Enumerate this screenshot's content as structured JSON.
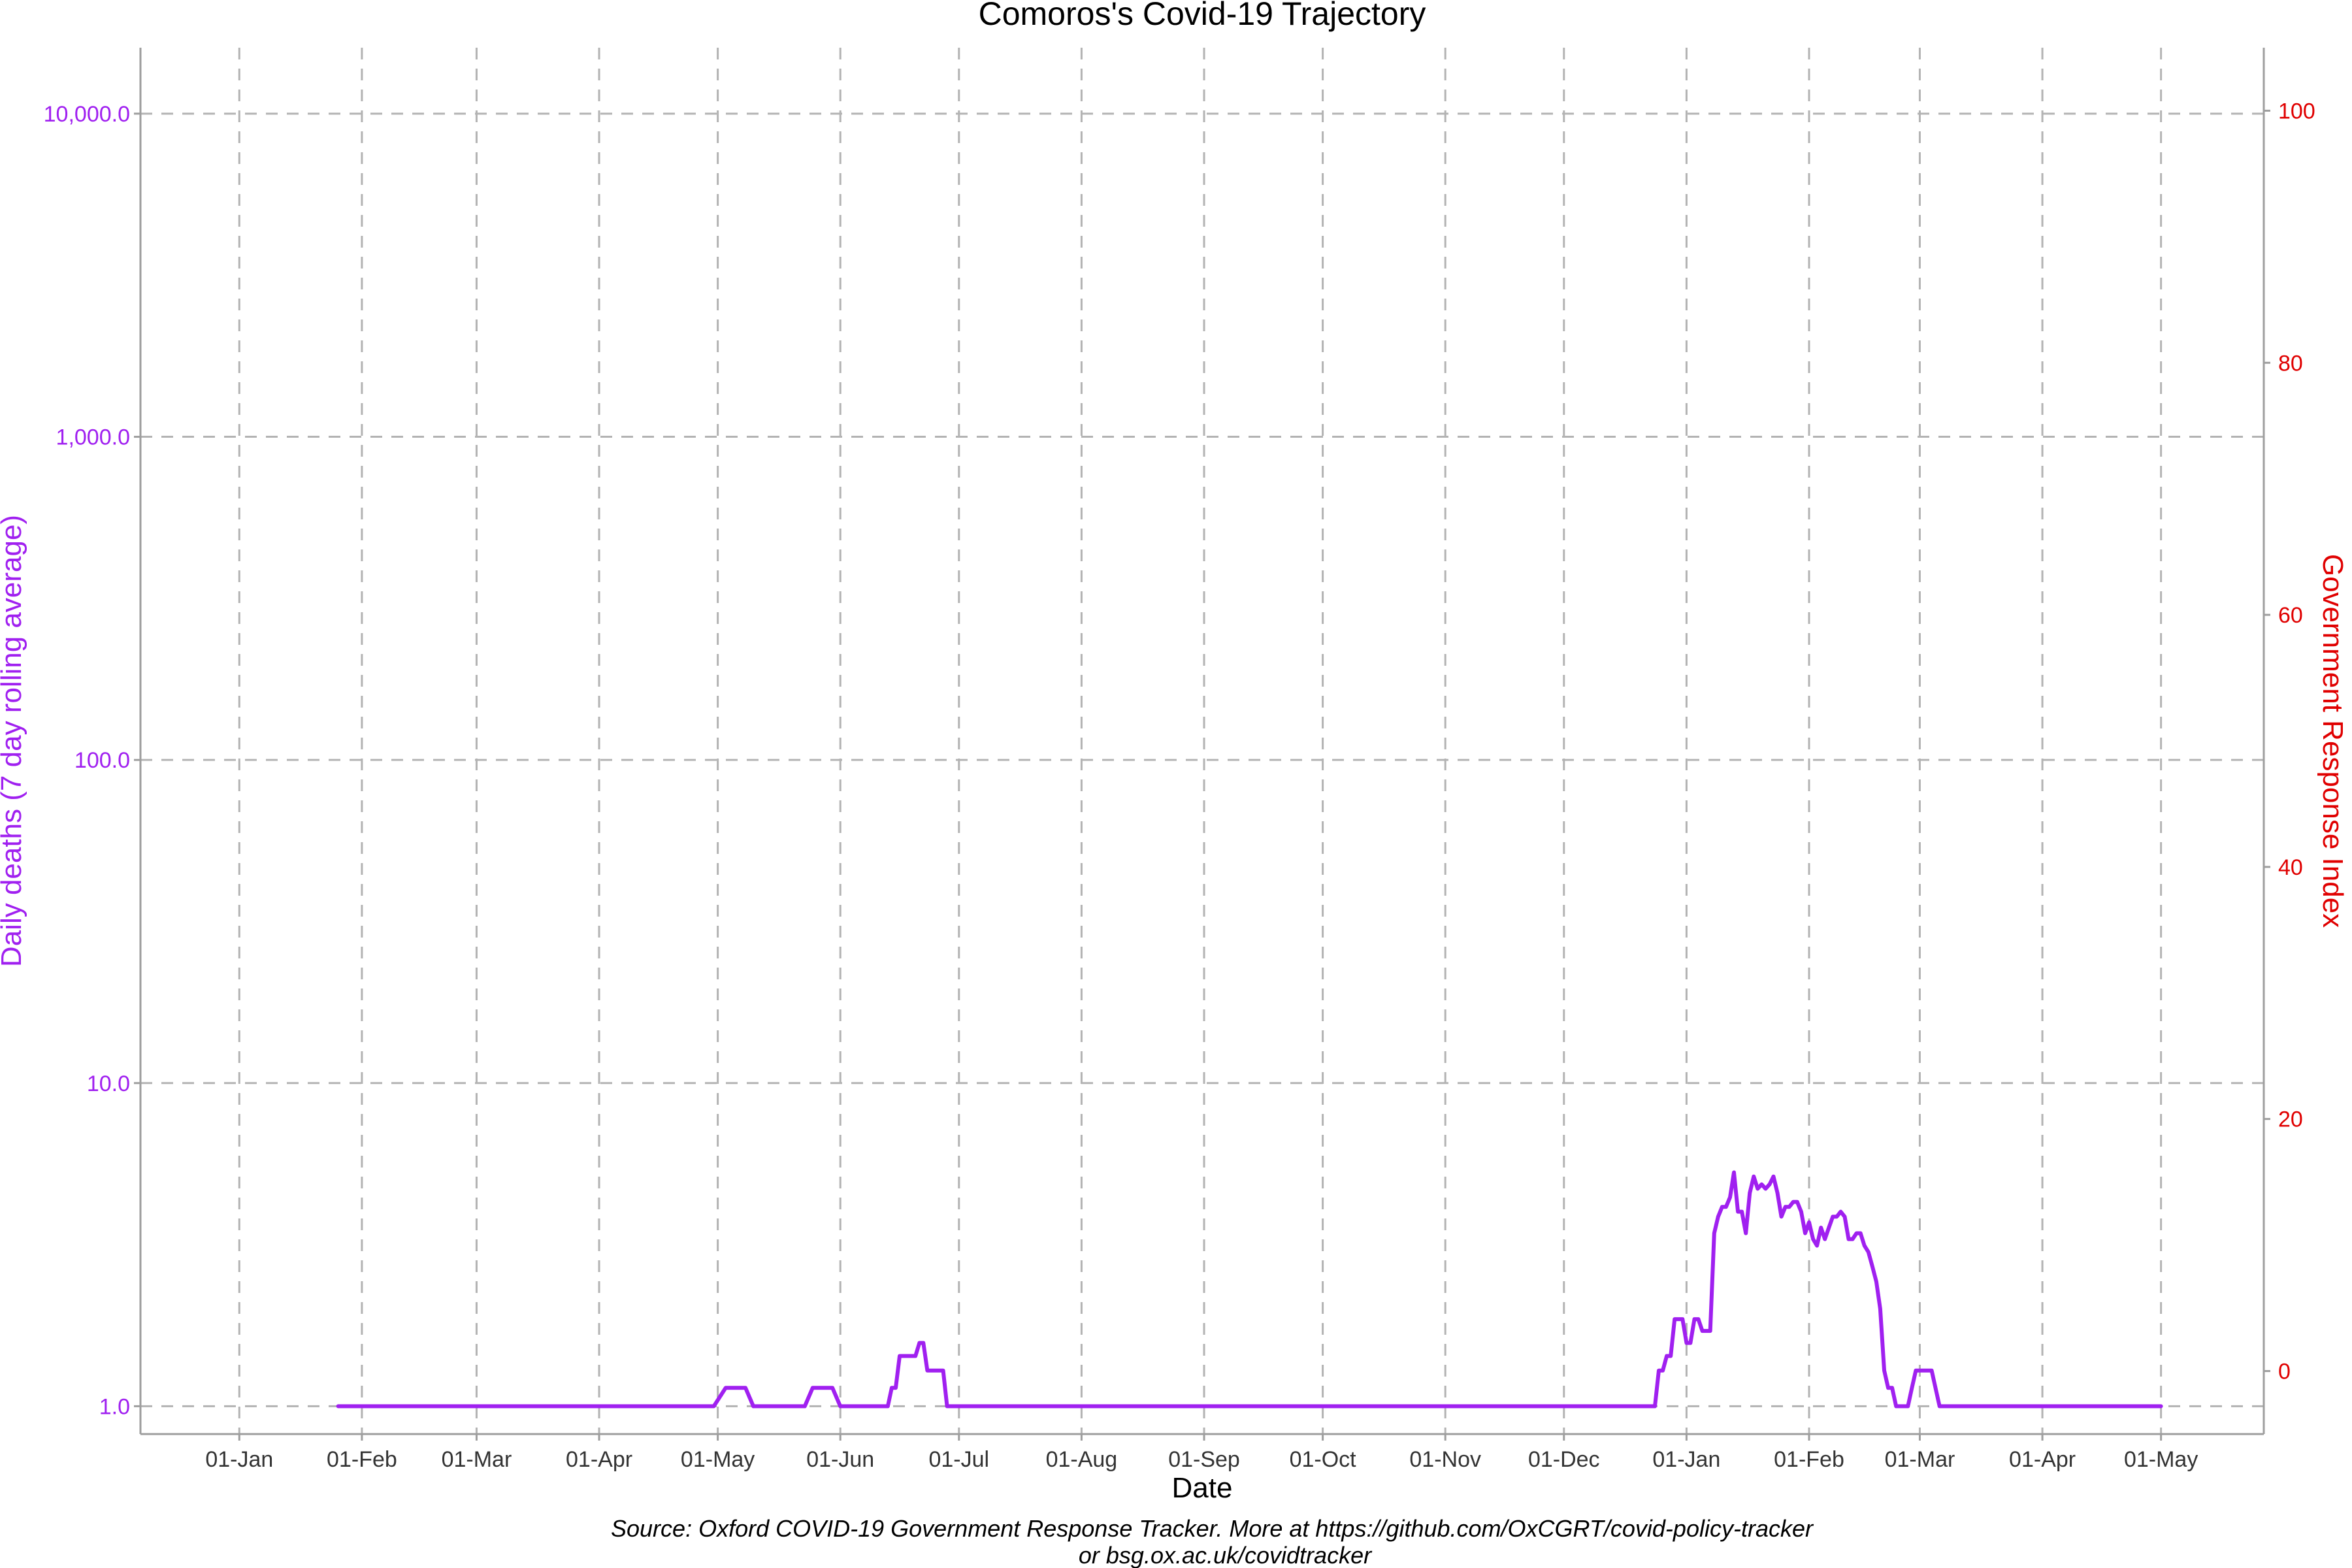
{
  "chart_data": {
    "type": "line",
    "title": "Comoros's Covid-19 Trajectory",
    "xlabel": "Date",
    "ylabel_left": "Daily deaths (7 day rolling average)",
    "ylabel_right": "Government Response Index",
    "caption_line1": "Source: Oxford COVID-19 Government Response Tracker. More at https://github.com/OxCGRT/covid-policy-tracker",
    "caption_line2": "or bsg.ox.ac.uk/covidtracker",
    "x_ticks": [
      "01-Jan",
      "01-Feb",
      "01-Mar",
      "01-Apr",
      "01-May",
      "01-Jun",
      "01-Jul",
      "01-Aug",
      "01-Sep",
      "01-Oct",
      "01-Nov",
      "01-Dec",
      "01-Jan",
      "01-Feb",
      "01-Mar",
      "01-Apr",
      "01-May"
    ],
    "x_tick_dates": [
      "2020-01-01",
      "2020-02-01",
      "2020-03-01",
      "2020-04-01",
      "2020-05-01",
      "2020-06-01",
      "2020-07-01",
      "2020-08-01",
      "2020-09-01",
      "2020-10-01",
      "2020-11-01",
      "2020-12-01",
      "2021-01-01",
      "2021-02-01",
      "2021-03-01",
      "2021-04-01",
      "2021-05-01"
    ],
    "x_range": [
      "2019-12-07",
      "2021-05-27"
    ],
    "y_left_scale": "log10",
    "y_left_ticks": [
      "1.0",
      "10.0",
      "100.0",
      "1,000.0",
      "10,000.0"
    ],
    "y_left_tick_values": [
      1,
      10,
      100,
      1000,
      10000
    ],
    "y_left_range": [
      0.82,
      16000
    ],
    "y_right_ticks": [
      "0",
      "20",
      "40",
      "60",
      "80",
      "100"
    ],
    "y_right_tick_values": [
      0,
      20,
      40,
      60,
      80,
      100
    ],
    "y_right_range": [
      -5,
      105
    ],
    "grid": true,
    "legend": "none",
    "colors": {
      "deaths": "#a020f0",
      "right_axis": "#e00000",
      "grid": "#b3b3b3"
    },
    "series": [
      {
        "name": "",
        "axis": "left",
        "points": [
          [
            "2020-01-26",
            1
          ],
          [
            "2020-04-30",
            1
          ],
          [
            "2020-05-03",
            1.14
          ],
          [
            "2020-05-08",
            1.14
          ],
          [
            "2020-05-10",
            1
          ],
          [
            "2020-05-23",
            1
          ],
          [
            "2020-05-25",
            1.14
          ],
          [
            "2020-05-30",
            1.14
          ],
          [
            "2020-06-01",
            1
          ],
          [
            "2020-06-13",
            1
          ],
          [
            "2020-06-14",
            1.14
          ],
          [
            "2020-06-15",
            1.14
          ],
          [
            "2020-06-16",
            1.43
          ],
          [
            "2020-06-20",
            1.43
          ],
          [
            "2020-06-21",
            1.57
          ],
          [
            "2020-06-22",
            1.57
          ],
          [
            "2020-06-23",
            1.29
          ],
          [
            "2020-06-27",
            1.29
          ],
          [
            "2020-06-28",
            1
          ],
          [
            "2020-12-24",
            1
          ],
          [
            "2020-12-25",
            1.29
          ],
          [
            "2020-12-26",
            1.29
          ],
          [
            "2020-12-27",
            1.43
          ],
          [
            "2020-12-28",
            1.43
          ],
          [
            "2020-12-29",
            1.86
          ],
          [
            "2020-12-31",
            1.86
          ],
          [
            "2021-01-01",
            1.57
          ],
          [
            "2021-01-02",
            1.57
          ],
          [
            "2021-01-03",
            1.86
          ],
          [
            "2021-01-04",
            1.86
          ],
          [
            "2021-01-05",
            1.71
          ],
          [
            "2021-01-07",
            1.71
          ],
          [
            "2021-01-08",
            3.43
          ],
          [
            "2021-01-09",
            3.86
          ],
          [
            "2021-01-10",
            4.14
          ],
          [
            "2021-01-11",
            4.14
          ],
          [
            "2021-01-12",
            4.43
          ],
          [
            "2021-01-13",
            5.29
          ],
          [
            "2021-01-14",
            4
          ],
          [
            "2021-01-15",
            4
          ],
          [
            "2021-01-16",
            3.43
          ],
          [
            "2021-01-17",
            4.57
          ],
          [
            "2021-01-18",
            5.14
          ],
          [
            "2021-01-19",
            4.71
          ],
          [
            "2021-01-20",
            4.86
          ],
          [
            "2021-01-21",
            4.71
          ],
          [
            "2021-01-22",
            4.86
          ],
          [
            "2021-01-23",
            5.14
          ],
          [
            "2021-01-24",
            4.57
          ],
          [
            "2021-01-25",
            3.86
          ],
          [
            "2021-01-26",
            4.14
          ],
          [
            "2021-01-27",
            4.14
          ],
          [
            "2021-01-28",
            4.29
          ],
          [
            "2021-01-29",
            4.29
          ],
          [
            "2021-01-30",
            4
          ],
          [
            "2021-01-31",
            3.43
          ],
          [
            "2021-02-01",
            3.71
          ],
          [
            "2021-02-02",
            3.29
          ],
          [
            "2021-02-03",
            3.14
          ],
          [
            "2021-02-04",
            3.57
          ],
          [
            "2021-02-05",
            3.29
          ],
          [
            "2021-02-06",
            3.57
          ],
          [
            "2021-02-07",
            3.86
          ],
          [
            "2021-02-08",
            3.86
          ],
          [
            "2021-02-09",
            4
          ],
          [
            "2021-02-10",
            3.86
          ],
          [
            "2021-02-11",
            3.29
          ],
          [
            "2021-02-12",
            3.29
          ],
          [
            "2021-02-13",
            3.43
          ],
          [
            "2021-02-14",
            3.43
          ],
          [
            "2021-02-15",
            3.14
          ],
          [
            "2021-02-16",
            3
          ],
          [
            "2021-02-17",
            2.71
          ],
          [
            "2021-02-18",
            2.43
          ],
          [
            "2021-02-19",
            2
          ],
          [
            "2021-02-20",
            1.29
          ],
          [
            "2021-02-21",
            1.14
          ],
          [
            "2021-02-22",
            1.14
          ],
          [
            "2021-02-23",
            1
          ],
          [
            "2021-02-26",
            1
          ],
          [
            "2021-02-27",
            1.14
          ],
          [
            "2021-02-28",
            1.29
          ],
          [
            "2021-03-04",
            1.29
          ],
          [
            "2021-03-06",
            1
          ],
          [
            "2021-05-01",
            1
          ]
        ]
      }
    ]
  }
}
